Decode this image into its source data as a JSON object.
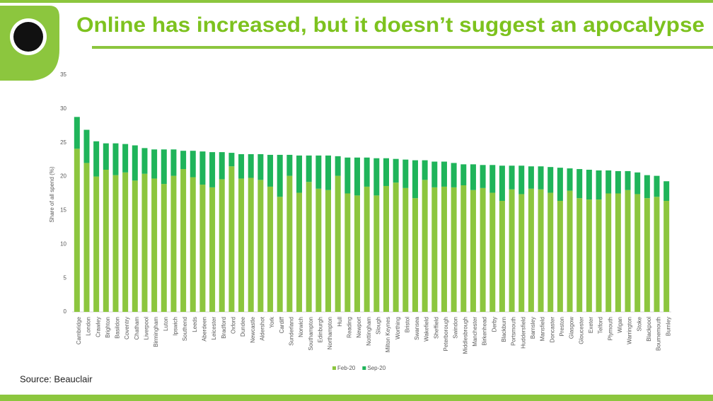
{
  "chart_data": {
    "type": "stacked_bar",
    "title": "Online has increased, but it doesn’t suggest an apocalypse",
    "y_label": "Share of all spend (%)",
    "source": "Source: Beauclair",
    "categories": [
      "Cambridge",
      "London",
      "Crawley",
      "Brighton",
      "Basildon",
      "Coventry",
      "Chatham",
      "Liverpool",
      "Birmingham",
      "Luton",
      "Ipswich",
      "Southend",
      "Leeds",
      "Aberdeen",
      "Leicester",
      "Bradford",
      "Oxford",
      "Dundee",
      "Newcastle",
      "Aldershot",
      "York",
      "Cardiff",
      "Sunderland",
      "Norwich",
      "Southampton",
      "Edinburgh",
      "Northampton",
      "Hull",
      "Reading",
      "Newport",
      "Nottingham",
      "Slough",
      "Milton Keynes",
      "Worthing",
      "Bristol",
      "Swansea",
      "Wakefield",
      "Sheffield",
      "Peterborough",
      "Swindon",
      "Middlesbrough",
      "Manchester",
      "Birkenhead",
      "Derby",
      "Blackburn",
      "Portsmouth",
      "Huddersfield",
      "Barnsley",
      "Mansfield",
      "Doncaster",
      "Preston",
      "Glasgow",
      "Gloucester",
      "Exeter",
      "Telford",
      "Plymouth",
      "Wigan",
      "Warrington",
      "Stoke",
      "Blackpool",
      "Bournemouth",
      "Burnley"
    ],
    "series": [
      {
        "name": "Feb-20",
        "color": "#8cc63e",
        "values": [
          24.1,
          22.0,
          20.0,
          21.0,
          20.2,
          20.6,
          19.4,
          20.4,
          19.7,
          18.9,
          20.1,
          21.1,
          19.9,
          18.8,
          18.4,
          19.6,
          21.5,
          19.7,
          19.8,
          19.5,
          18.5,
          17.0,
          20.1,
          17.6,
          19.2,
          18.2,
          18.0,
          20.1,
          17.5,
          17.2,
          18.5,
          17.2,
          18.6,
          19.1,
          18.3,
          16.8,
          19.5,
          18.4,
          18.5,
          18.4,
          18.7,
          18.0,
          18.3,
          17.6,
          16.4,
          18.1,
          17.4,
          18.2,
          18.1,
          17.6,
          16.4,
          17.9,
          16.8,
          16.6,
          16.6,
          17.5,
          17.5,
          18.0,
          17.4,
          16.8,
          17.0,
          16.4
        ]
      },
      {
        "name": "Sep-20",
        "color": "#1fb45a",
        "values": [
          4.7,
          4.9,
          5.2,
          3.9,
          4.7,
          4.2,
          5.2,
          3.8,
          4.3,
          5.1,
          3.9,
          2.7,
          3.9,
          4.9,
          5.2,
          4.0,
          2.0,
          3.6,
          3.5,
          3.8,
          4.7,
          6.2,
          3.1,
          5.5,
          3.9,
          4.9,
          5.1,
          2.9,
          5.3,
          5.6,
          4.3,
          5.5,
          4.1,
          3.5,
          4.2,
          5.6,
          2.9,
          3.8,
          3.7,
          3.6,
          3.1,
          3.8,
          3.4,
          4.1,
          5.2,
          3.5,
          4.2,
          3.3,
          3.4,
          3.8,
          4.9,
          3.3,
          4.3,
          4.4,
          4.3,
          3.4,
          3.3,
          2.8,
          3.2,
          3.4,
          3.1,
          2.9
        ]
      }
    ],
    "ylim": [
      0,
      35
    ],
    "yticks": [
      0,
      5,
      10,
      15,
      20,
      25,
      30,
      35
    ],
    "legend": "bottom"
  }
}
